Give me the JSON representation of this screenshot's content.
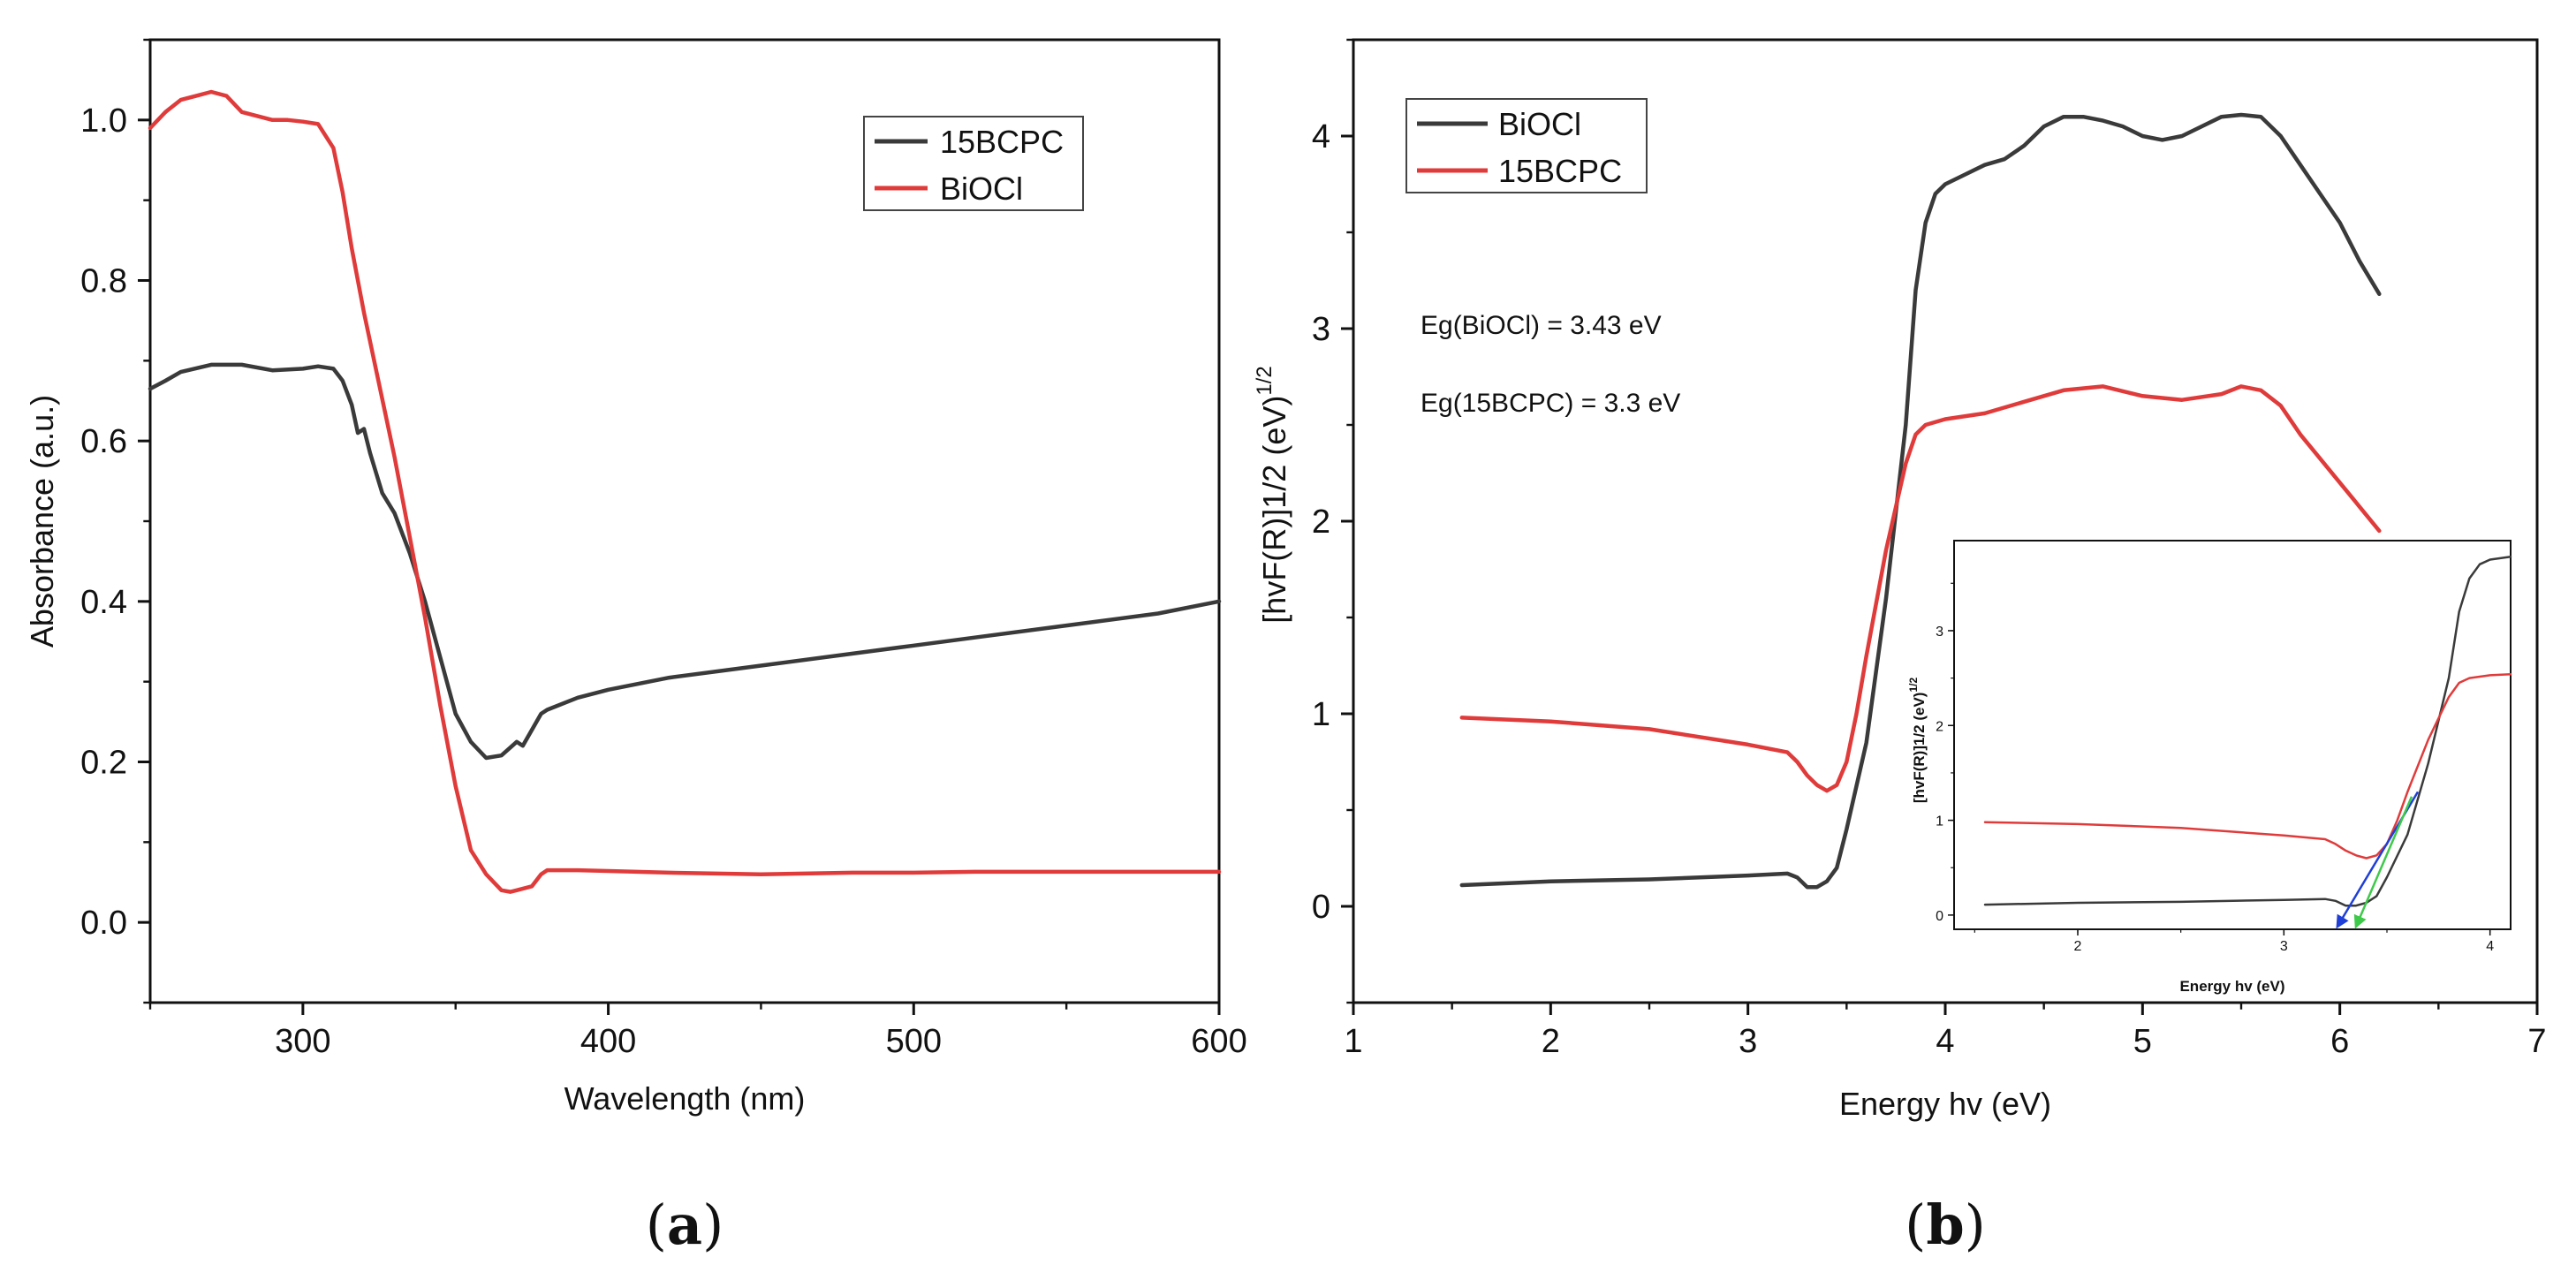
{
  "colors": {
    "black_series": "#3a3a3a",
    "red_series": "#e03b3b",
    "axis": "#111111",
    "arrow_blue": "#1f3fd6",
    "arrow_green": "#3fc94a"
  },
  "chart_data": [
    {
      "type": "line",
      "panel_label_left": "(",
      "panel_letter": "a",
      "panel_label_right": ")",
      "xlabel": "Wavelength (nm)",
      "ylabel": "Absorbance (a.u.)",
      "xlim": [
        250,
        600
      ],
      "ylim": [
        -0.1,
        1.1
      ],
      "xticks": [
        300,
        400,
        500,
        600
      ],
      "xtick_labels": [
        "300",
        "400",
        "500",
        "600"
      ],
      "yticks": [
        0.0,
        0.2,
        0.4,
        0.6,
        0.8,
        1.0
      ],
      "ytick_labels": [
        "0.0",
        "0.2",
        "0.4",
        "0.6",
        "0.8",
        "1.0"
      ],
      "legend": [
        "15BCPC",
        "BiOCl"
      ],
      "legend_position": "top-right",
      "series": [
        {
          "name": "15BCPC",
          "color": "black",
          "x": [
            250,
            255,
            260,
            270,
            280,
            290,
            300,
            305,
            310,
            313,
            316,
            318,
            320,
            322,
            324,
            326,
            330,
            335,
            340,
            345,
            350,
            355,
            360,
            365,
            370,
            372,
            375,
            378,
            380,
            390,
            400,
            420,
            450,
            480,
            500,
            520,
            550,
            580,
            600
          ],
          "y": [
            0.665,
            0.675,
            0.686,
            0.695,
            0.695,
            0.688,
            0.69,
            0.693,
            0.69,
            0.675,
            0.645,
            0.61,
            0.615,
            0.585,
            0.56,
            0.535,
            0.51,
            0.46,
            0.4,
            0.33,
            0.26,
            0.225,
            0.205,
            0.208,
            0.225,
            0.22,
            0.24,
            0.26,
            0.265,
            0.28,
            0.29,
            0.305,
            0.32,
            0.335,
            0.345,
            0.355,
            0.37,
            0.385,
            0.4
          ]
        },
        {
          "name": "BiOCl",
          "color": "red",
          "x": [
            250,
            255,
            260,
            265,
            270,
            275,
            280,
            285,
            290,
            295,
            300,
            305,
            310,
            313,
            316,
            320,
            325,
            330,
            335,
            340,
            345,
            350,
            355,
            360,
            365,
            368,
            370,
            375,
            378,
            380,
            390,
            400,
            420,
            450,
            480,
            500,
            520,
            550,
            580,
            600
          ],
          "y": [
            0.99,
            1.01,
            1.025,
            1.03,
            1.035,
            1.03,
            1.01,
            1.005,
            1.0,
            1.0,
            0.998,
            0.995,
            0.965,
            0.91,
            0.84,
            0.76,
            0.67,
            0.58,
            0.48,
            0.38,
            0.27,
            0.17,
            0.09,
            0.06,
            0.04,
            0.038,
            0.04,
            0.045,
            0.06,
            0.065,
            0.065,
            0.064,
            0.062,
            0.06,
            0.062,
            0.062,
            0.063,
            0.063,
            0.063,
            0.063
          ]
        }
      ]
    },
    {
      "type": "line",
      "panel_label_left": "(",
      "panel_letter": "b",
      "panel_label_right": ")",
      "xlabel": "Energy hv (eV)",
      "ylabel_main": "[hvF(R)]1/2 (eV)",
      "ylabel_sup": "1/2",
      "xlim": [
        1,
        7
      ],
      "ylim": [
        -0.5,
        4.5
      ],
      "xticks": [
        1,
        2,
        3,
        4,
        5,
        6,
        7
      ],
      "xtick_labels": [
        "1",
        "2",
        "3",
        "4",
        "5",
        "6",
        "7"
      ],
      "yticks": [
        0,
        1,
        2,
        3,
        4
      ],
      "ytick_labels": [
        "0",
        "1",
        "2",
        "3",
        "4"
      ],
      "legend": [
        "BiOCl",
        "15BCPC"
      ],
      "legend_position": "top-left",
      "annotations": [
        "Eg(BiOCl) = 3.43 eV",
        "Eg(15BCPC) = 3.3 eV"
      ],
      "series": [
        {
          "name": "BiOCl",
          "color": "black",
          "x": [
            1.55,
            2.0,
            2.5,
            3.0,
            3.2,
            3.25,
            3.3,
            3.35,
            3.4,
            3.45,
            3.5,
            3.6,
            3.7,
            3.8,
            3.85,
            3.9,
            3.95,
            4.0,
            4.1,
            4.2,
            4.3,
            4.4,
            4.5,
            4.6,
            4.7,
            4.8,
            4.9,
            5.0,
            5.1,
            5.2,
            5.3,
            5.4,
            5.5,
            5.6,
            5.7,
            5.8,
            5.9,
            6.0,
            6.1,
            6.2
          ],
          "y": [
            0.11,
            0.13,
            0.14,
            0.16,
            0.17,
            0.15,
            0.1,
            0.1,
            0.13,
            0.2,
            0.4,
            0.85,
            1.6,
            2.5,
            3.2,
            3.55,
            3.7,
            3.75,
            3.8,
            3.85,
            3.88,
            3.95,
            4.05,
            4.1,
            4.1,
            4.08,
            4.05,
            4.0,
            3.98,
            4.0,
            4.05,
            4.1,
            4.11,
            4.1,
            4.0,
            3.85,
            3.7,
            3.55,
            3.35,
            3.18
          ]
        },
        {
          "name": "15BCPC",
          "color": "red",
          "x": [
            1.55,
            2.0,
            2.5,
            3.0,
            3.2,
            3.25,
            3.3,
            3.35,
            3.4,
            3.45,
            3.5,
            3.55,
            3.6,
            3.7,
            3.8,
            3.85,
            3.9,
            4.0,
            4.2,
            4.4,
            4.6,
            4.8,
            5.0,
            5.2,
            5.4,
            5.5,
            5.6,
            5.7,
            5.8,
            6.0,
            6.2
          ],
          "y": [
            0.98,
            0.96,
            0.92,
            0.84,
            0.8,
            0.75,
            0.68,
            0.63,
            0.6,
            0.63,
            0.75,
            1.0,
            1.3,
            1.85,
            2.3,
            2.45,
            2.5,
            2.53,
            2.56,
            2.62,
            2.68,
            2.7,
            2.65,
            2.63,
            2.66,
            2.7,
            2.68,
            2.6,
            2.45,
            2.2,
            1.95
          ]
        }
      ],
      "inset": {
        "xlabel": "Energy hv (eV)",
        "ylabel_main": "[hvF(R)]1/2 (eV)",
        "ylabel_sup": "1/2",
        "xlim": [
          1.4,
          4.1
        ],
        "ylim": [
          -0.15,
          3.95
        ],
        "xticks": [
          2,
          3,
          4
        ],
        "xtick_labels": [
          "2",
          "3",
          "4"
        ],
        "yticks": [
          0,
          1,
          2,
          3
        ],
        "ytick_labels": [
          "0",
          "1",
          "2",
          "3"
        ],
        "series": [
          {
            "name": "BiOCl",
            "color": "black",
            "x": [
              1.55,
              2.0,
              2.5,
              3.0,
              3.2,
              3.25,
              3.3,
              3.35,
              3.4,
              3.45,
              3.5,
              3.6,
              3.7,
              3.8,
              3.85,
              3.9,
              3.95,
              4.0,
              4.1
            ],
            "y": [
              0.11,
              0.13,
              0.14,
              0.16,
              0.17,
              0.15,
              0.1,
              0.1,
              0.13,
              0.2,
              0.4,
              0.85,
              1.6,
              2.5,
              3.2,
              3.55,
              3.7,
              3.75,
              3.78
            ]
          },
          {
            "name": "15BCPC",
            "color": "red",
            "x": [
              1.55,
              2.0,
              2.5,
              3.0,
              3.2,
              3.25,
              3.3,
              3.35,
              3.4,
              3.45,
              3.5,
              3.55,
              3.6,
              3.7,
              3.8,
              3.85,
              3.9,
              4.0,
              4.1
            ],
            "y": [
              0.98,
              0.96,
              0.92,
              0.84,
              0.8,
              0.75,
              0.68,
              0.63,
              0.6,
              0.63,
              0.75,
              1.0,
              1.3,
              1.85,
              2.3,
              2.45,
              2.5,
              2.53,
              2.54
            ]
          }
        ],
        "tangents": [
          {
            "name": "blue-tangent",
            "color": "blue",
            "x": [
              3.65,
              3.26
            ],
            "y": [
              1.3,
              -0.12
            ]
          },
          {
            "name": "green-tangent",
            "color": "green",
            "x": [
              3.62,
              3.35
            ],
            "y": [
              1.25,
              -0.12
            ]
          }
        ]
      }
    }
  ]
}
